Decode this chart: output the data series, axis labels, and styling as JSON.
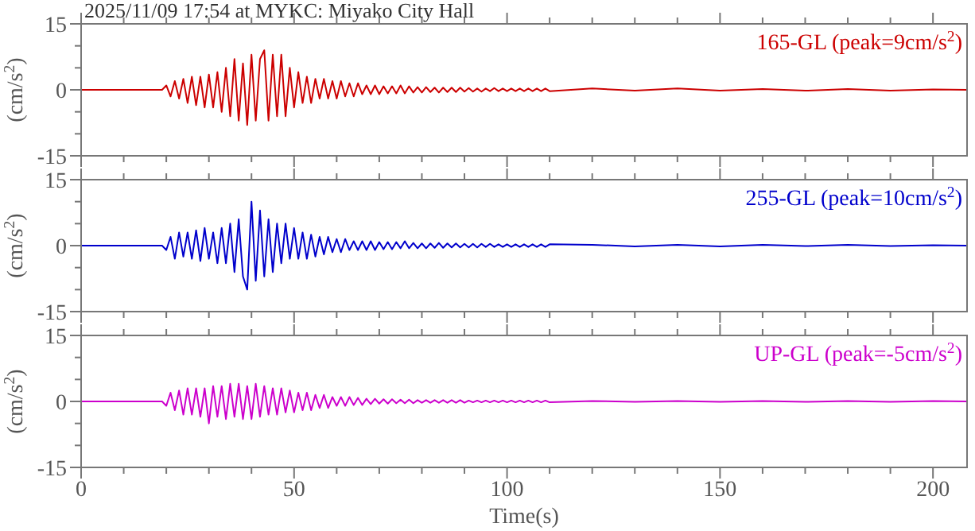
{
  "chart_data": [
    {
      "type": "line",
      "title": "2025/11/09 17:54 at MYKC: Miyako City Hall",
      "ylabel": "(cm/s$^{2}$)",
      "tick_labels": "y",
      "x": [
        0,
        19,
        20,
        21,
        22,
        23,
        24,
        25,
        26,
        27,
        28,
        29,
        30,
        31,
        32,
        33,
        34,
        35,
        36,
        37,
        38,
        39,
        40,
        41,
        42,
        43,
        44,
        45,
        46,
        47,
        48,
        49,
        50,
        51,
        52,
        53,
        54,
        55,
        56,
        57,
        58,
        59,
        60,
        61,
        62,
        63,
        64,
        65,
        66,
        67,
        68,
        69,
        70,
        71,
        72,
        73,
        74,
        75,
        76,
        77,
        78,
        79,
        80,
        81,
        82,
        83,
        84,
        85,
        86,
        87,
        88,
        89,
        90,
        91,
        92,
        93,
        94,
        95,
        96,
        97,
        98,
        99,
        100,
        101,
        102,
        103,
        104,
        105,
        106,
        107,
        108,
        109,
        110,
        120,
        130,
        140,
        150,
        160,
        170,
        180,
        190,
        200,
        208
      ],
      "xlim": [
        0,
        208
      ],
      "xticks": [
        0,
        {
          "value": 10,
          "label": null
        },
        {
          "value": 20,
          "label": null
        },
        {
          "value": 30,
          "label": null
        },
        {
          "value": 40,
          "label": null
        },
        50,
        {
          "value": 60,
          "label": null
        },
        {
          "value": 70,
          "label": null
        },
        {
          "value": 80,
          "label": null
        },
        {
          "value": 90,
          "label": null
        },
        100,
        {
          "value": 110,
          "label": null
        },
        {
          "value": 120,
          "label": null
        },
        {
          "value": 130,
          "label": null
        },
        {
          "value": 140,
          "label": null
        },
        150,
        {
          "value": 160,
          "label": null
        },
        {
          "value": 170,
          "label": null
        },
        {
          "value": 180,
          "label": null
        },
        {
          "value": 190,
          "label": null
        },
        200
      ],
      "ylim": [
        -15,
        15
      ],
      "yticks": [
        -15,
        {
          "value": -10,
          "label": null
        },
        {
          "value": -5,
          "label": null
        },
        0,
        {
          "value": 5,
          "label": null
        },
        {
          "value": 10,
          "label": null
        },
        15
      ],
      "series": [
        {
          "name": "165-GL (peak=9cm/s$^{2}$)",
          "color": "#cc0000",
          "values": [
            0,
            0,
            1,
            -1.5,
            2,
            -2,
            2.5,
            -3,
            3,
            -3.5,
            3,
            -4,
            3.5,
            -4,
            4,
            -5,
            5,
            -6,
            7,
            -7,
            6,
            -8,
            8,
            -7,
            7,
            9,
            -7,
            8,
            -6,
            8,
            -6,
            5,
            -4,
            4,
            -3,
            3,
            -3,
            2.5,
            -2,
            2.5,
            -2,
            2,
            -2,
            2,
            -1.5,
            1.5,
            -1.5,
            1.5,
            -1,
            1,
            -1,
            1,
            -1,
            0.8,
            -0.8,
            0.8,
            -0.8,
            1,
            -0.8,
            0.8,
            -0.6,
            0.6,
            -0.6,
            0.6,
            -0.5,
            0.5,
            -0.6,
            0.5,
            -0.5,
            0.5,
            -0.5,
            0.5,
            -0.4,
            0.4,
            -0.4,
            0.3,
            -0.4,
            0.3,
            -0.3,
            0.4,
            -0.3,
            0.3,
            -0.3,
            0.3,
            -0.3,
            0.3,
            -0.3,
            0.3,
            -0.3,
            0.3,
            -0.3,
            0.3,
            -0.3,
            0.3,
            -0.2,
            0.3,
            -0.2,
            0.2,
            -0.2,
            0.2,
            -0.2,
            0.1,
            0
          ]
        }
      ]
    },
    {
      "type": "line",
      "ylabel": "(cm/s$^{2}$)",
      "tick_labels": "y",
      "x": [
        0,
        19,
        20,
        21,
        22,
        23,
        24,
        25,
        26,
        27,
        28,
        29,
        30,
        31,
        32,
        33,
        34,
        35,
        36,
        37,
        38,
        39,
        40,
        41,
        42,
        43,
        44,
        45,
        46,
        47,
        48,
        49,
        50,
        51,
        52,
        53,
        54,
        55,
        56,
        57,
        58,
        59,
        60,
        61,
        62,
        63,
        64,
        65,
        66,
        67,
        68,
        69,
        70,
        71,
        72,
        73,
        74,
        75,
        76,
        77,
        78,
        79,
        80,
        81,
        82,
        83,
        84,
        85,
        86,
        87,
        88,
        89,
        90,
        91,
        92,
        93,
        94,
        95,
        96,
        97,
        98,
        99,
        100,
        101,
        102,
        103,
        104,
        105,
        106,
        107,
        108,
        109,
        110,
        120,
        130,
        140,
        150,
        160,
        170,
        180,
        190,
        200,
        208
      ],
      "xlim": [
        0,
        208
      ],
      "xticks": [
        0,
        {
          "value": 10,
          "label": null
        },
        {
          "value": 20,
          "label": null
        },
        {
          "value": 30,
          "label": null
        },
        {
          "value": 40,
          "label": null
        },
        50,
        {
          "value": 60,
          "label": null
        },
        {
          "value": 70,
          "label": null
        },
        {
          "value": 80,
          "label": null
        },
        {
          "value": 90,
          "label": null
        },
        100,
        {
          "value": 110,
          "label": null
        },
        {
          "value": 120,
          "label": null
        },
        {
          "value": 130,
          "label": null
        },
        {
          "value": 140,
          "label": null
        },
        150,
        {
          "value": 160,
          "label": null
        },
        {
          "value": 170,
          "label": null
        },
        {
          "value": 180,
          "label": null
        },
        {
          "value": 190,
          "label": null
        },
        200
      ],
      "ylim": [
        -15,
        15
      ],
      "yticks": [
        -15,
        {
          "value": -10,
          "label": null
        },
        {
          "value": -5,
          "label": null
        },
        0,
        {
          "value": 5,
          "label": null
        },
        {
          "value": 10,
          "label": null
        },
        15
      ],
      "series": [
        {
          "name": "255-GL (peak=10cm/s$^{2}$)",
          "color": "#0000cc",
          "values": [
            0,
            0,
            -1,
            2,
            -3,
            3,
            -2.5,
            3,
            -3,
            3.5,
            -3.5,
            4,
            -3,
            3,
            -4,
            4,
            -4,
            5,
            -6,
            6,
            -7,
            -10,
            10,
            -8,
            8,
            -7,
            6,
            -6,
            5,
            -4,
            5,
            -3,
            4,
            -3,
            3,
            -3,
            2.5,
            -2.5,
            2,
            -2,
            2,
            -1.5,
            1.5,
            -1.5,
            1.5,
            -1,
            1,
            -1,
            1,
            -1,
            1,
            -1,
            0.8,
            -0.8,
            0.8,
            -0.8,
            0.8,
            -0.6,
            1,
            -0.6,
            0.6,
            -0.6,
            0.5,
            -0.6,
            0.5,
            -0.5,
            0.6,
            -0.5,
            0.5,
            -0.4,
            0.5,
            -0.4,
            0.4,
            -0.4,
            0.4,
            -0.4,
            0.4,
            -0.3,
            0.4,
            -0.3,
            0.3,
            -0.3,
            0.3,
            -0.3,
            0.3,
            -0.3,
            0.3,
            -0.3,
            0.3,
            -0.3,
            0.3,
            -0.3,
            0.3,
            0.2,
            -0.2,
            0.2,
            -0.2,
            0.2,
            -0.1,
            0.2,
            -0.1,
            0.1,
            0
          ]
        }
      ]
    },
    {
      "type": "line",
      "ylabel": "(cm/s$^{2}$)",
      "xlabel": "Time(s)",
      "x": [
        0,
        19,
        20,
        21,
        22,
        23,
        24,
        25,
        26,
        27,
        28,
        29,
        30,
        31,
        32,
        33,
        34,
        35,
        36,
        37,
        38,
        39,
        40,
        41,
        42,
        43,
        44,
        45,
        46,
        47,
        48,
        49,
        50,
        51,
        52,
        53,
        54,
        55,
        56,
        57,
        58,
        59,
        60,
        61,
        62,
        63,
        64,
        65,
        66,
        67,
        68,
        69,
        70,
        71,
        72,
        73,
        74,
        75,
        76,
        77,
        78,
        79,
        80,
        81,
        82,
        83,
        84,
        85,
        86,
        87,
        88,
        89,
        90,
        91,
        92,
        93,
        94,
        95,
        96,
        97,
        98,
        99,
        100,
        101,
        102,
        103,
        104,
        105,
        106,
        107,
        108,
        109,
        110,
        120,
        130,
        140,
        150,
        160,
        170,
        180,
        190,
        200,
        208
      ],
      "xlim": [
        0,
        208
      ],
      "xticks": [
        0,
        {
          "value": 10,
          "label": null
        },
        {
          "value": 20,
          "label": null
        },
        {
          "value": 30,
          "label": null
        },
        {
          "value": 40,
          "label": null
        },
        50,
        {
          "value": 60,
          "label": null
        },
        {
          "value": 70,
          "label": null
        },
        {
          "value": 80,
          "label": null
        },
        {
          "value": 90,
          "label": null
        },
        100,
        {
          "value": 110,
          "label": null
        },
        {
          "value": 120,
          "label": null
        },
        {
          "value": 130,
          "label": null
        },
        {
          "value": 140,
          "label": null
        },
        150,
        {
          "value": 160,
          "label": null
        },
        {
          "value": 170,
          "label": null
        },
        {
          "value": 180,
          "label": null
        },
        {
          "value": 190,
          "label": null
        },
        200
      ],
      "ylim": [
        -15,
        15
      ],
      "yticks": [
        -15,
        {
          "value": -10,
          "label": null
        },
        {
          "value": -5,
          "label": null
        },
        0,
        {
          "value": 5,
          "label": null
        },
        {
          "value": 10,
          "label": null
        },
        15
      ],
      "series": [
        {
          "name": "UP-GL (peak=-5cm/s$^{2}$)",
          "color": "#cc00cc",
          "values": [
            0,
            0,
            -1,
            2,
            -2,
            2.5,
            -3,
            3,
            -3,
            3,
            -3.5,
            3,
            -5,
            3.5,
            -3.5,
            3.5,
            -4,
            4,
            -3.5,
            4,
            -4,
            3.5,
            -4,
            4,
            -3.5,
            3.5,
            -3,
            3,
            -3,
            3,
            -2.5,
            2.5,
            -2.5,
            2,
            -2,
            2,
            -2,
            1.5,
            -1.5,
            1.5,
            -1.5,
            1,
            -1,
            1,
            -1,
            1,
            -0.8,
            0.8,
            -0.8,
            0.6,
            -0.6,
            0.6,
            -0.5,
            0.5,
            -0.5,
            0.5,
            -0.4,
            0.4,
            -0.4,
            0.4,
            -0.4,
            0.3,
            -0.3,
            0.3,
            -0.3,
            0.3,
            -0.3,
            0.3,
            -0.3,
            0.3,
            -0.3,
            0.3,
            -0.3,
            0.2,
            -0.2,
            0.2,
            -0.2,
            0.2,
            -0.2,
            0.2,
            -0.2,
            0.2,
            -0.2,
            0.2,
            -0.2,
            0.2,
            -0.2,
            0.2,
            -0.2,
            0.2,
            -0.2,
            0.2,
            -0.2,
            0.1,
            -0.1,
            0.1,
            -0.1,
            0.1,
            -0.1,
            0.1,
            -0.1,
            0.1,
            0
          ]
        }
      ]
    }
  ]
}
